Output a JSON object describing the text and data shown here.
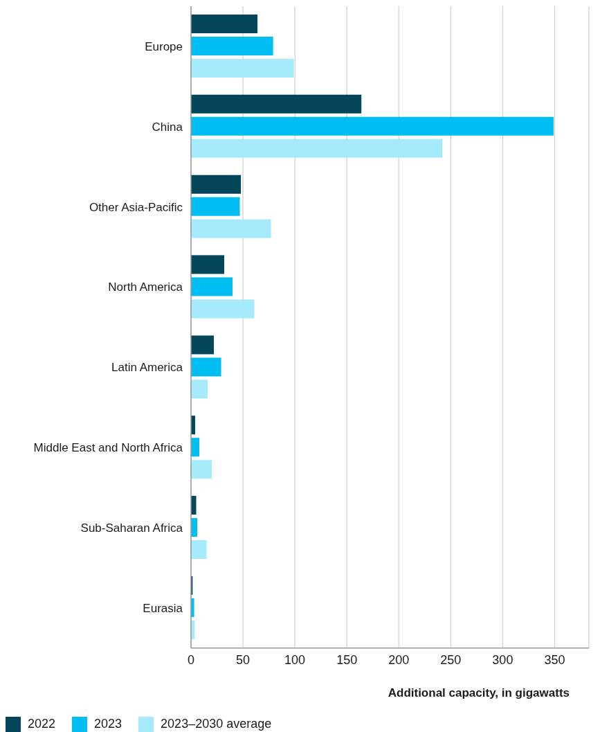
{
  "chart_data": {
    "type": "bar",
    "orientation": "horizontal",
    "xlabel": "Additional capacity, in gigawatts",
    "categories": [
      "Europe",
      "China",
      "Other Asia-Pacific",
      "North America",
      "Latin America",
      "Middle East and North Africa",
      "Sub-Saharan Africa",
      "Eurasia"
    ],
    "series": [
      {
        "name": "2022",
        "color": "#03465a",
        "values": [
          64,
          164,
          48,
          32,
          22,
          4,
          5,
          1.5
        ]
      },
      {
        "name": "2023",
        "color": "#00bdf2",
        "values": [
          79,
          349,
          47,
          40,
          29,
          8,
          6,
          3
        ]
      },
      {
        "name": "2023–2030 average",
        "color": "#a6ebfc",
        "values": [
          99,
          242,
          77,
          61,
          16,
          20,
          15,
          3.5
        ]
      }
    ],
    "xlim": [
      0,
      383
    ],
    "xticks": [
      0,
      50,
      100,
      150,
      200,
      250,
      300,
      350
    ],
    "grid": "x",
    "legend": "bottom left"
  }
}
